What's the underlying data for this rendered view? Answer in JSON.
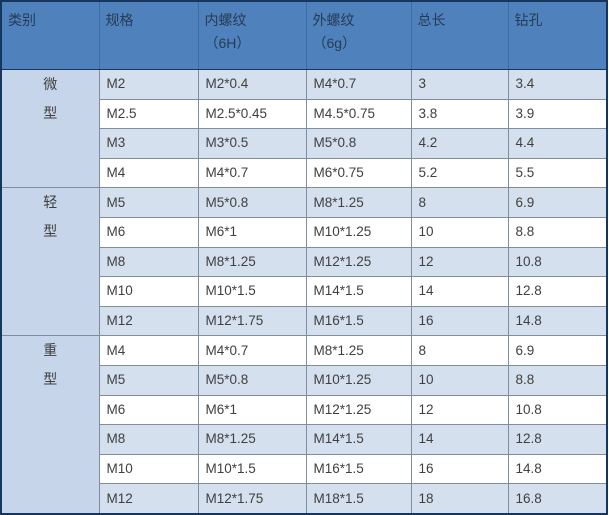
{
  "colors": {
    "header_bg": "#4f81bd",
    "header_text": "#263c55",
    "row_stripe": "#d5e0ee",
    "row_white": "#ffffff",
    "category_bg": "#c6d5e9",
    "grid_line": "#7f8e9d",
    "outer_border": "#17365d",
    "body_text": "#404040"
  },
  "table": {
    "columns": [
      {
        "label": "类别",
        "sub": ""
      },
      {
        "label": "规格",
        "sub": ""
      },
      {
        "label": "内螺纹",
        "sub": "（6H）"
      },
      {
        "label": "外螺纹",
        "sub": "（6g）"
      },
      {
        "label": "总长",
        "sub": ""
      },
      {
        "label": "钻孔",
        "sub": ""
      }
    ],
    "groups": [
      {
        "category": "微型",
        "rows": [
          [
            "M2",
            "M2*0.4",
            "M4*0.7",
            "3",
            "3.4"
          ],
          [
            "M2.5",
            "M2.5*0.45",
            "M4.5*0.75",
            "3.8",
            "3.9"
          ],
          [
            "M3",
            "M3*0.5",
            "M5*0.8",
            "4.2",
            "4.4"
          ],
          [
            "M4",
            "M4*0.7",
            "M6*0.75",
            "5.2",
            "5.5"
          ]
        ]
      },
      {
        "category": "轻型",
        "rows": [
          [
            "M5",
            "M5*0.8",
            "M8*1.25",
            "8",
            "6.9"
          ],
          [
            "M6",
            "M6*1",
            "M10*1.25",
            "10",
            "8.8"
          ],
          [
            "M8",
            "M8*1.25",
            "M12*1.25",
            "12",
            "10.8"
          ],
          [
            "M10",
            "M10*1.5",
            "M14*1.5",
            "14",
            "12.8"
          ],
          [
            "M12",
            "M12*1.75",
            "M16*1.5",
            "16",
            "14.8"
          ]
        ]
      },
      {
        "category": "重型",
        "rows": [
          [
            "M4",
            "M4*0.7",
            "M8*1.25",
            "8",
            "6.9"
          ],
          [
            "M5",
            "M5*0.8",
            "M10*1.25",
            "10",
            "8.8"
          ],
          [
            "M6",
            "M6*1",
            "M12*1.25",
            "12",
            "10.8"
          ],
          [
            "M8",
            "M8*1.25",
            "M14*1.5",
            "14",
            "12.8"
          ],
          [
            "M10",
            "M10*1.5",
            "M16*1.5",
            "16",
            "14.8"
          ],
          [
            "M12",
            "M12*1.75",
            "M18*1.5",
            "18",
            "16.8"
          ]
        ]
      }
    ]
  },
  "chart_data": {
    "type": "table",
    "title": "",
    "columns": [
      "类别",
      "规格",
      "内螺纹（6H）",
      "外螺纹（6g）",
      "总长",
      "钻孔"
    ],
    "rows": [
      [
        "微型",
        "M2",
        "M2*0.4",
        "M4*0.7",
        "3",
        "3.4"
      ],
      [
        "微型",
        "M2.5",
        "M2.5*0.45",
        "M4.5*0.75",
        "3.8",
        "3.9"
      ],
      [
        "微型",
        "M3",
        "M3*0.5",
        "M5*0.8",
        "4.2",
        "4.4"
      ],
      [
        "微型",
        "M4",
        "M4*0.7",
        "M6*0.75",
        "5.2",
        "5.5"
      ],
      [
        "轻型",
        "M5",
        "M5*0.8",
        "M8*1.25",
        "8",
        "6.9"
      ],
      [
        "轻型",
        "M6",
        "M6*1",
        "M10*1.25",
        "10",
        "8.8"
      ],
      [
        "轻型",
        "M8",
        "M8*1.25",
        "M12*1.25",
        "12",
        "10.8"
      ],
      [
        "轻型",
        "M10",
        "M10*1.5",
        "M14*1.5",
        "14",
        "12.8"
      ],
      [
        "轻型",
        "M12",
        "M12*1.75",
        "M16*1.5",
        "16",
        "14.8"
      ],
      [
        "重型",
        "M4",
        "M4*0.7",
        "M8*1.25",
        "8",
        "6.9"
      ],
      [
        "重型",
        "M5",
        "M5*0.8",
        "M10*1.25",
        "10",
        "8.8"
      ],
      [
        "重型",
        "M6",
        "M6*1",
        "M12*1.25",
        "12",
        "10.8"
      ],
      [
        "重型",
        "M8",
        "M8*1.25",
        "M14*1.5",
        "14",
        "12.8"
      ],
      [
        "重型",
        "M10",
        "M10*1.5",
        "M16*1.5",
        "16",
        "14.8"
      ],
      [
        "重型",
        "M12",
        "M12*1.75",
        "M18*1.5",
        "18",
        "16.8"
      ]
    ]
  }
}
